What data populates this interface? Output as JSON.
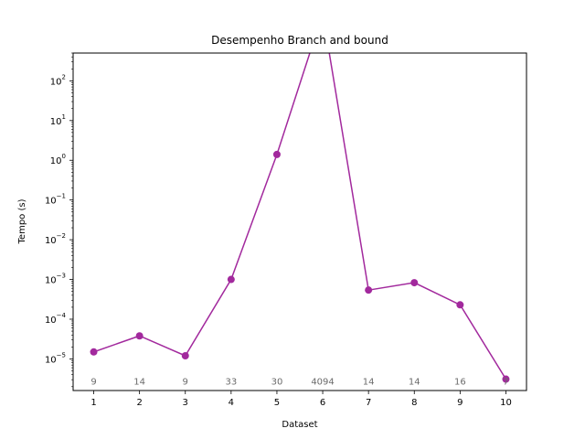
{
  "chart_data": {
    "type": "line",
    "title": "Desempenho Branch and bound",
    "xlabel": "Dataset",
    "ylabel": "Tempo (s)",
    "yscale": "log",
    "grid": false,
    "x": [
      1,
      2,
      3,
      4,
      5,
      6,
      7,
      8,
      9,
      10
    ],
    "xticks": [
      "1",
      "2",
      "3",
      "4",
      "5",
      "6",
      "7",
      "8",
      "9",
      "10"
    ],
    "ylim": [
      1.6e-06,
      500
    ],
    "xlim": [
      0.55,
      10.45
    ],
    "series": [
      {
        "color": "#a2299d",
        "marker": "circle",
        "values": [
          1.5e-05,
          3.8e-05,
          1.2e-05,
          0.001,
          1.4,
          5000,
          0.00054,
          0.00083,
          0.00023,
          3.1e-06
        ]
      }
    ],
    "annotations": [
      "9",
      "14",
      "9",
      "33",
      "30",
      "4094",
      "14",
      "14",
      "16",
      "7"
    ],
    "annotation_y": 2.8e-06,
    "annotation_color": "#6b6b6b"
  }
}
